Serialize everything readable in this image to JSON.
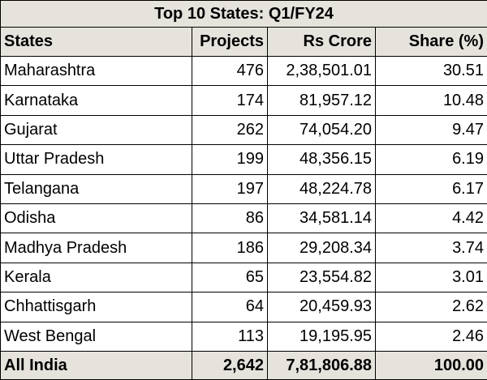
{
  "table": {
    "title": "Top 10 States: Q1/FY24",
    "headers": {
      "state": "States",
      "projects": "Projects",
      "rs_crore": "Rs Crore",
      "share": "Share (%)"
    },
    "rows": [
      {
        "state": "Maharashtra",
        "projects": "476",
        "rs_crore": "2,38,501.01",
        "share": "30.51"
      },
      {
        "state": "Karnataka",
        "projects": "174",
        "rs_crore": "81,957.12",
        "share": "10.48"
      },
      {
        "state": "Gujarat",
        "projects": "262",
        "rs_crore": "74,054.20",
        "share": "9.47"
      },
      {
        "state": "Uttar Pradesh",
        "projects": "199",
        "rs_crore": "48,356.15",
        "share": "6.19"
      },
      {
        "state": "Telangana",
        "projects": "197",
        "rs_crore": "48,224.78",
        "share": "6.17"
      },
      {
        "state": "Odisha",
        "projects": "86",
        "rs_crore": "34,581.14",
        "share": "4.42"
      },
      {
        "state": "Madhya Pradesh",
        "projects": "186",
        "rs_crore": "29,208.34",
        "share": "3.74"
      },
      {
        "state": "Kerala",
        "projects": "65",
        "rs_crore": "23,554.82",
        "share": "3.01"
      },
      {
        "state": "Chhattisgarh",
        "projects": "64",
        "rs_crore": "20,459.93",
        "share": "2.62"
      },
      {
        "state": "West Bengal",
        "projects": "113",
        "rs_crore": "19,195.95",
        "share": "2.46"
      }
    ],
    "total": {
      "state": "All India",
      "projects": "2,642",
      "rs_crore": "7,81,806.88",
      "share": "100.00"
    }
  }
}
